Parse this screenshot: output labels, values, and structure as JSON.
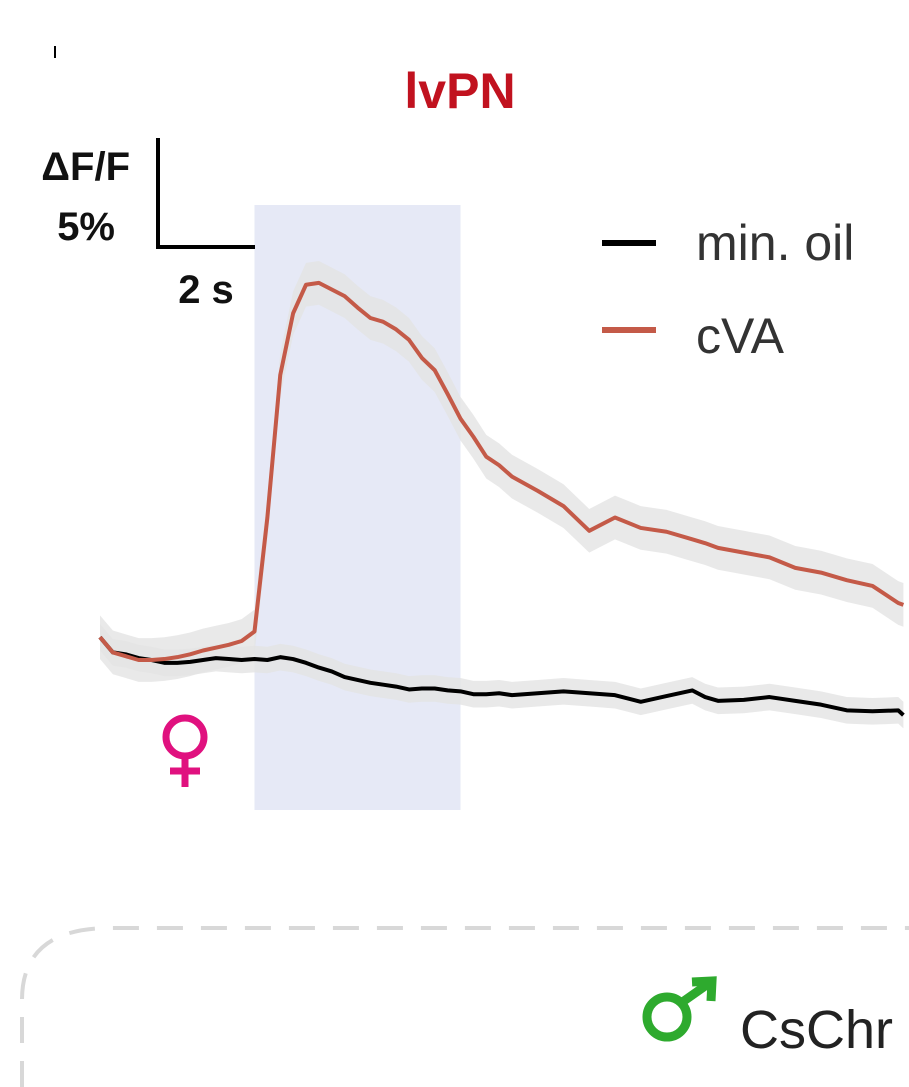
{
  "chart_data": {
    "type": "line",
    "title": "lvPN",
    "scale_bar": {
      "y_label_line1": "ΔF/F",
      "y_label_line2": "5%",
      "x_label": "2 s"
    },
    "stimulus_window": {
      "start_s": 3.0,
      "end_s": 7.0
    },
    "x": [
      0.0,
      0.25,
      0.5,
      0.75,
      1.0,
      1.25,
      1.5,
      1.75,
      2.0,
      2.25,
      2.5,
      2.75,
      3.0,
      3.25,
      3.5,
      3.75,
      4.0,
      4.25,
      4.5,
      4.75,
      5.0,
      5.25,
      5.5,
      5.75,
      6.0,
      6.25,
      6.5,
      6.75,
      7.0,
      7.25,
      7.5,
      7.75,
      8.0,
      8.5,
      9.0,
      9.5,
      10.0,
      10.5,
      11.0,
      11.5,
      11.75,
      12.0,
      12.5,
      13.0,
      13.5,
      14.0,
      14.5,
      15.0,
      15.5,
      15.6
    ],
    "series": [
      {
        "name": "min. oil",
        "color": "#000000",
        "values": [
          2.4,
          0.8,
          0.6,
          0.2,
          0.0,
          -0.3,
          -0.3,
          -0.2,
          0.0,
          0.2,
          0.1,
          0.0,
          0.1,
          0.0,
          0.3,
          0.1,
          -0.3,
          -0.8,
          -1.2,
          -1.8,
          -2.1,
          -2.4,
          -2.6,
          -2.8,
          -3.1,
          -3.0,
          -3.0,
          -3.2,
          -3.3,
          -3.6,
          -3.6,
          -3.5,
          -3.7,
          -3.5,
          -3.3,
          -3.5,
          -3.7,
          -4.4,
          -3.8,
          -3.2,
          -3.9,
          -4.3,
          -4.2,
          -3.9,
          -4.3,
          -4.7,
          -5.3,
          -5.4,
          -5.3,
          -5.8
        ],
        "sem": 1.4
      },
      {
        "name": "cVA",
        "color": "#c45a48",
        "values": [
          2.4,
          0.8,
          0.4,
          0.0,
          0.0,
          0.1,
          0.3,
          0.6,
          1.0,
          1.3,
          1.6,
          2.0,
          3.0,
          15.0,
          30.0,
          36.5,
          39.5,
          39.7,
          39.0,
          38.3,
          37.1,
          36.0,
          35.6,
          34.8,
          33.7,
          31.8,
          30.5,
          28.0,
          25.4,
          23.5,
          21.4,
          20.5,
          19.3,
          17.8,
          16.2,
          13.6,
          15.0,
          13.9,
          13.5,
          12.7,
          12.3,
          11.8,
          11.3,
          10.8,
          9.7,
          9.2,
          8.4,
          7.8,
          6.0,
          5.8
        ],
        "sem": 2.3
      }
    ],
    "legend": {
      "position": "top-right",
      "entries": [
        "min. oil",
        "cVA"
      ]
    },
    "annotations": {
      "female_symbol": "♀",
      "lower_panel_male_symbol": "♂",
      "lower_panel_label": "CsChr"
    }
  },
  "colors": {
    "title": "#c1121f",
    "stimulus": "#e6e9f6",
    "sem_band": "#e3e3e3",
    "female_symbol": "#e0117f",
    "male_symbol": "#2eaa2e",
    "dash": "#d8d8d8",
    "legend_text": "#333333"
  }
}
